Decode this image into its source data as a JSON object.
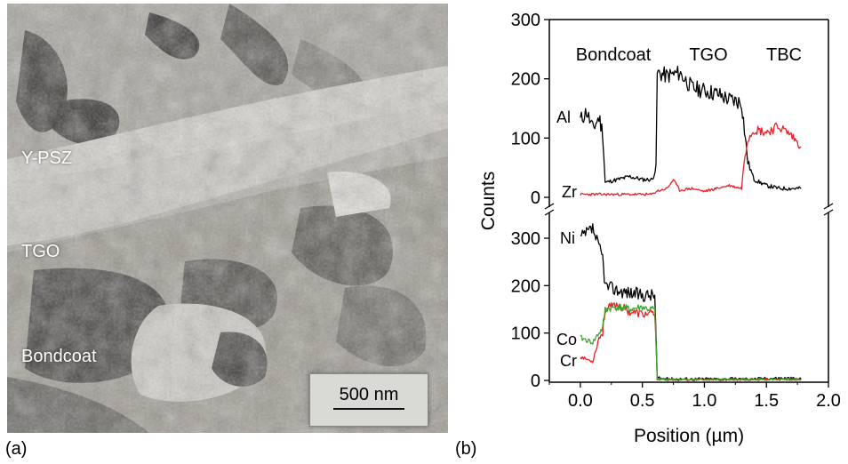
{
  "panel_a": {
    "label": "(a)",
    "labels": {
      "ypsz": "Y-PSZ",
      "tgo": "TGO",
      "bondcoat": "Bondcoat"
    },
    "scale_bar": "500 nm"
  },
  "panel_b": {
    "label": "(b)"
  },
  "chart_data": {
    "type": "line",
    "xlabel": "Position (µm)",
    "ylabel": "Counts",
    "xlim": [
      -0.25,
      2.0
    ],
    "x_ticks": [
      "0.0",
      "0.5",
      "1.0",
      "1.5",
      "2.0"
    ],
    "x_tick_values": [
      0,
      0.5,
      1.0,
      1.5,
      2.0
    ],
    "layer_labels": [
      "Bondcoat",
      "TGO",
      "TBC"
    ],
    "top_panel": {
      "ylim": [
        -10,
        300
      ],
      "y_ticks": [
        "0",
        "100",
        "200",
        "300"
      ],
      "y_tick_values": [
        0,
        100,
        200,
        300
      ],
      "series": [
        {
          "name": "Al",
          "color": "#000000",
          "x": [
            0.0,
            0.05,
            0.1,
            0.15,
            0.18,
            0.2,
            0.3,
            0.4,
            0.5,
            0.58,
            0.61,
            0.62,
            0.7,
            0.8,
            0.9,
            1.0,
            1.1,
            1.2,
            1.3,
            1.33,
            1.35,
            1.4,
            1.5,
            1.6,
            1.7,
            1.78
          ],
          "y": [
            130,
            145,
            115,
            135,
            110,
            25,
            30,
            35,
            30,
            30,
            50,
            210,
            205,
            210,
            185,
            180,
            175,
            165,
            160,
            100,
            60,
            30,
            20,
            15,
            15,
            15
          ]
        },
        {
          "name": "Zr",
          "color": "#e8202a",
          "x": [
            0.0,
            0.1,
            0.2,
            0.3,
            0.4,
            0.5,
            0.58,
            0.61,
            0.7,
            0.75,
            0.8,
            0.9,
            1.0,
            1.1,
            1.2,
            1.3,
            1.32,
            1.35,
            1.4,
            1.5,
            1.6,
            1.7,
            1.78
          ],
          "y": [
            5,
            5,
            5,
            5,
            5,
            5,
            5,
            10,
            15,
            30,
            12,
            15,
            10,
            15,
            20,
            15,
            60,
            100,
            115,
            110,
            120,
            105,
            85
          ]
        }
      ]
    },
    "bottom_panel": {
      "ylim": [
        -10,
        350
      ],
      "y_ticks": [
        "0",
        "100",
        "200",
        "300"
      ],
      "y_tick_values": [
        0,
        100,
        200,
        300
      ],
      "series": [
        {
          "name": "Ni",
          "color": "#000000",
          "x": [
            0.0,
            0.05,
            0.1,
            0.15,
            0.18,
            0.2,
            0.3,
            0.4,
            0.5,
            0.55,
            0.6,
            0.62,
            0.7,
            0.8,
            1.0,
            1.2,
            1.4,
            1.6,
            1.78
          ],
          "y": [
            300,
            310,
            320,
            280,
            260,
            200,
            190,
            185,
            180,
            180,
            180,
            5,
            3,
            3,
            3,
            3,
            3,
            5,
            3
          ]
        },
        {
          "name": "Co",
          "color": "#3aa82f",
          "x": [
            0.0,
            0.05,
            0.1,
            0.15,
            0.18,
            0.2,
            0.3,
            0.4,
            0.5,
            0.55,
            0.6,
            0.62,
            0.7,
            0.8,
            1.0,
            1.2,
            1.4,
            1.6,
            1.78
          ],
          "y": [
            90,
            85,
            80,
            100,
            110,
            150,
            155,
            150,
            155,
            150,
            150,
            3,
            2,
            2,
            2,
            2,
            2,
            2,
            2
          ]
        },
        {
          "name": "Cr",
          "color": "#e8202a",
          "x": [
            0.0,
            0.05,
            0.1,
            0.15,
            0.18,
            0.2,
            0.3,
            0.4,
            0.5,
            0.55,
            0.6,
            0.62,
            0.7,
            0.8,
            1.0,
            1.2,
            1.4,
            1.6,
            1.78
          ],
          "y": [
            50,
            45,
            40,
            90,
            100,
            150,
            160,
            145,
            140,
            140,
            140,
            3,
            2,
            2,
            2,
            2,
            2,
            2,
            2
          ]
        }
      ]
    }
  }
}
